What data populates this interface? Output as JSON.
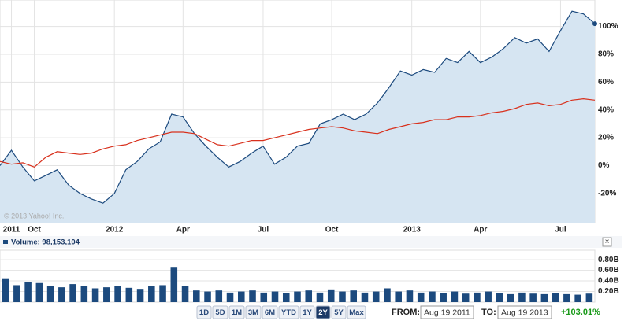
{
  "chart_data": [
    {
      "type": "line",
      "categories": [
        null,
        "2011",
        null,
        "Oct",
        null,
        null,
        null,
        null,
        null,
        null,
        "2012",
        null,
        null,
        null,
        null,
        null,
        "Apr",
        null,
        null,
        null,
        null,
        null,
        null,
        "Jul",
        null,
        null,
        null,
        null,
        null,
        "Oct",
        null,
        null,
        null,
        null,
        null,
        null,
        "2013",
        null,
        null,
        null,
        null,
        null,
        "Apr",
        null,
        null,
        null,
        null,
        null,
        null,
        "Jul",
        null,
        null,
        null
      ],
      "series": [
        {
          "color": "#1c4a7e",
          "fill": "#d6e5f2",
          "values": [
            0,
            11,
            -1,
            -11,
            -7,
            -3,
            -14,
            -20,
            -24,
            -27,
            -20,
            -3,
            3,
            12,
            17,
            37,
            35,
            23,
            14,
            6,
            -1,
            3,
            9,
            14,
            1,
            6,
            14,
            16,
            30,
            33,
            37,
            33,
            37,
            45,
            56,
            68,
            65,
            69,
            67,
            77,
            74,
            82,
            74,
            78,
            84,
            92,
            88,
            91,
            82,
            97,
            111,
            109,
            102
          ]
        },
        {
          "color": "#d8301c",
          "values": [
            3,
            1,
            2,
            -1,
            6,
            10,
            9,
            8,
            9,
            12,
            14,
            15,
            18,
            20,
            22,
            24,
            24,
            23,
            19,
            15,
            14,
            16,
            18,
            18,
            20,
            22,
            24,
            26,
            27,
            28,
            27,
            25,
            24,
            23,
            26,
            28,
            30,
            31,
            33,
            33,
            35,
            35,
            36,
            38,
            39,
            41,
            44,
            45,
            43,
            44,
            47,
            48,
            47
          ]
        }
      ],
      "ylim": [
        -41,
        119
      ],
      "yticks": [
        {
          "value": -20,
          "label": "-20%"
        },
        {
          "value": 0,
          "label": "0%"
        },
        {
          "value": 20,
          "label": "20%"
        },
        {
          "value": 40,
          "label": "40%"
        },
        {
          "value": 60,
          "label": "60%"
        },
        {
          "value": 80,
          "label": "80%"
        },
        {
          "value": 100,
          "label": "100%"
        }
      ],
      "grid": true,
      "annotation": "© 2013 Yahoo! Inc."
    },
    {
      "type": "bar",
      "color": "#1c4a7e",
      "values": [
        0.45,
        0.32,
        0.38,
        0.36,
        0.3,
        0.28,
        0.34,
        0.3,
        0.26,
        0.28,
        0.3,
        0.27,
        0.25,
        0.3,
        0.32,
        0.65,
        0.3,
        0.22,
        0.2,
        0.22,
        0.18,
        0.2,
        0.22,
        0.18,
        0.2,
        0.17,
        0.2,
        0.22,
        0.18,
        0.24,
        0.2,
        0.22,
        0.18,
        0.2,
        0.26,
        0.2,
        0.22,
        0.18,
        0.2,
        0.17,
        0.2,
        0.16,
        0.18,
        0.2,
        0.17,
        0.15,
        0.18,
        0.16,
        0.15,
        0.17,
        0.15,
        0.14,
        0.16
      ],
      "ylim": [
        0,
        0.98
      ],
      "yticks": [
        {
          "value": 0.2,
          "label": "0.20B"
        },
        {
          "value": 0.4,
          "label": "0.40B"
        },
        {
          "value": 0.6,
          "label": "0.60B"
        },
        {
          "value": 0.8,
          "label": "0.80B"
        }
      ],
      "grid": true
    }
  ],
  "volume": {
    "label": "Volume: 98,153,104",
    "close": "×"
  },
  "controls": {
    "ranges": [
      "1D",
      "5D",
      "1M",
      "3M",
      "6M",
      "YTD",
      "1Y",
      "2Y",
      "5Y",
      "Max"
    ],
    "selected": "2Y",
    "from_label": "FROM:",
    "from": "Aug 19 2011",
    "to_label": "TO:",
    "to": "Aug 19 2013",
    "change": "+103.01%"
  }
}
